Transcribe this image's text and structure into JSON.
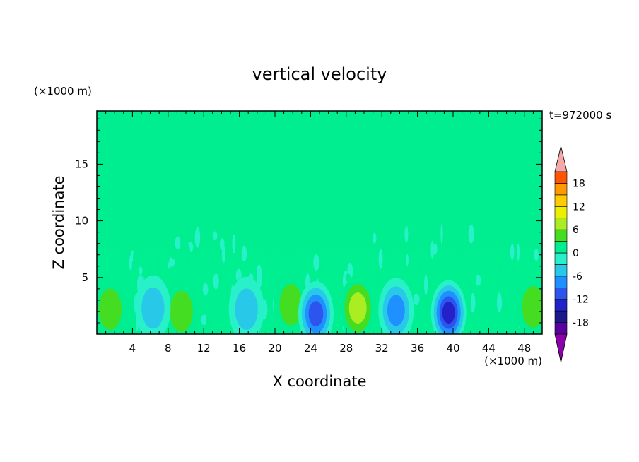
{
  "chart_data": {
    "type": "heatmap",
    "title": "vertical velocity",
    "xlabel": "X coordinate",
    "ylabel": "Z coordinate",
    "x_unit": "(×1000 m)",
    "y_unit": "(×1000 m)",
    "time_label": "t=972000 s",
    "xlim": [
      0,
      50
    ],
    "ylim": [
      0,
      19.7
    ],
    "x_ticks": [
      4,
      8,
      12,
      16,
      20,
      24,
      28,
      32,
      36,
      40,
      44,
      48
    ],
    "y_ticks": [
      5,
      10,
      15
    ],
    "colorbar": {
      "levels": [
        -21,
        -18,
        -15,
        -12,
        -9,
        -6,
        -3,
        0,
        3,
        6,
        9,
        12,
        15,
        18,
        21
      ],
      "labels": [
        18,
        12,
        6,
        0,
        -6,
        -12,
        -18
      ],
      "colors": [
        "#5a00a0",
        "#1a1a8c",
        "#2222c8",
        "#2d55ee",
        "#1e90ff",
        "#28c8e8",
        "#28f0c8",
        "#00ee90",
        "#44dd22",
        "#aaee22",
        "#eeee00",
        "#ffcc00",
        "#ff9900",
        "#ff5500",
        "#ee2222"
      ],
      "under_color": "#8a00aa",
      "over_color": "#f4a8a8"
    },
    "field_background": 0,
    "features": [
      {
        "desc": "updraft",
        "x": 1.5,
        "z": 2.2,
        "value": 6
      },
      {
        "desc": "updraft",
        "x": 9.5,
        "z": 2.0,
        "value": 8
      },
      {
        "desc": "downdraft",
        "x": 6.3,
        "z": 2.3,
        "value": -6
      },
      {
        "desc": "downdraft",
        "x": 16.8,
        "z": 2.2,
        "value": -8
      },
      {
        "desc": "updraft",
        "x": 21.8,
        "z": 2.6,
        "value": 6
      },
      {
        "desc": "downdraft",
        "x": 24.6,
        "z": 1.8,
        "value": -12
      },
      {
        "desc": "updraft",
        "x": 29.3,
        "z": 2.3,
        "value": 9
      },
      {
        "desc": "downdraft",
        "x": 33.6,
        "z": 2.1,
        "value": -9
      },
      {
        "desc": "downdraft",
        "x": 39.5,
        "z": 1.9,
        "value": -15
      },
      {
        "desc": "updraft",
        "x": 49.0,
        "z": 2.4,
        "value": 8
      }
    ]
  }
}
